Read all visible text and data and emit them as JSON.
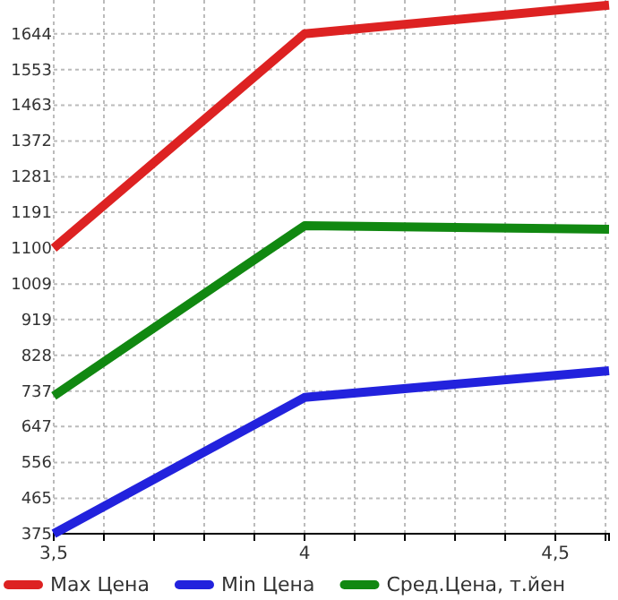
{
  "chart_data": {
    "type": "line",
    "x": [
      3.5,
      4,
      4.607
    ],
    "xlim": [
      3.5,
      4.607
    ],
    "xticks": [
      {
        "value": 3.5,
        "label": "3,5"
      },
      {
        "value": 3.6,
        "label": null
      },
      {
        "value": 3.7,
        "label": null
      },
      {
        "value": 3.8,
        "label": null
      },
      {
        "value": 3.9,
        "label": null
      },
      {
        "value": 4,
        "label": "4"
      },
      {
        "value": 4.1,
        "label": null
      },
      {
        "value": 4.2,
        "label": null
      },
      {
        "value": 4.3,
        "label": null
      },
      {
        "value": 4.4,
        "label": null
      },
      {
        "value": 4.5,
        "label": "4,5"
      },
      {
        "value": 4.6,
        "label": null
      }
    ],
    "ylim": [
      375,
      1730
    ],
    "yticks": [
      375,
      465,
      556,
      647,
      737,
      828,
      919,
      1009,
      1100,
      1191,
      1281,
      1372,
      1463,
      1553,
      1644
    ],
    "grid": true,
    "legend": "bottom",
    "marker": "none",
    "line_style": "solid",
    "series": [
      {
        "name": "Max Цена",
        "color": "#dd2222",
        "values": [
          1100,
          1644,
          1717
        ]
      },
      {
        "name": "Min Цена",
        "color": "#2222dd",
        "values": [
          375,
          721,
          789
        ]
      },
      {
        "name": "Сред.Цена, т.йен",
        "color": "#118811",
        "values": [
          725,
          1157,
          1148
        ]
      }
    ]
  }
}
